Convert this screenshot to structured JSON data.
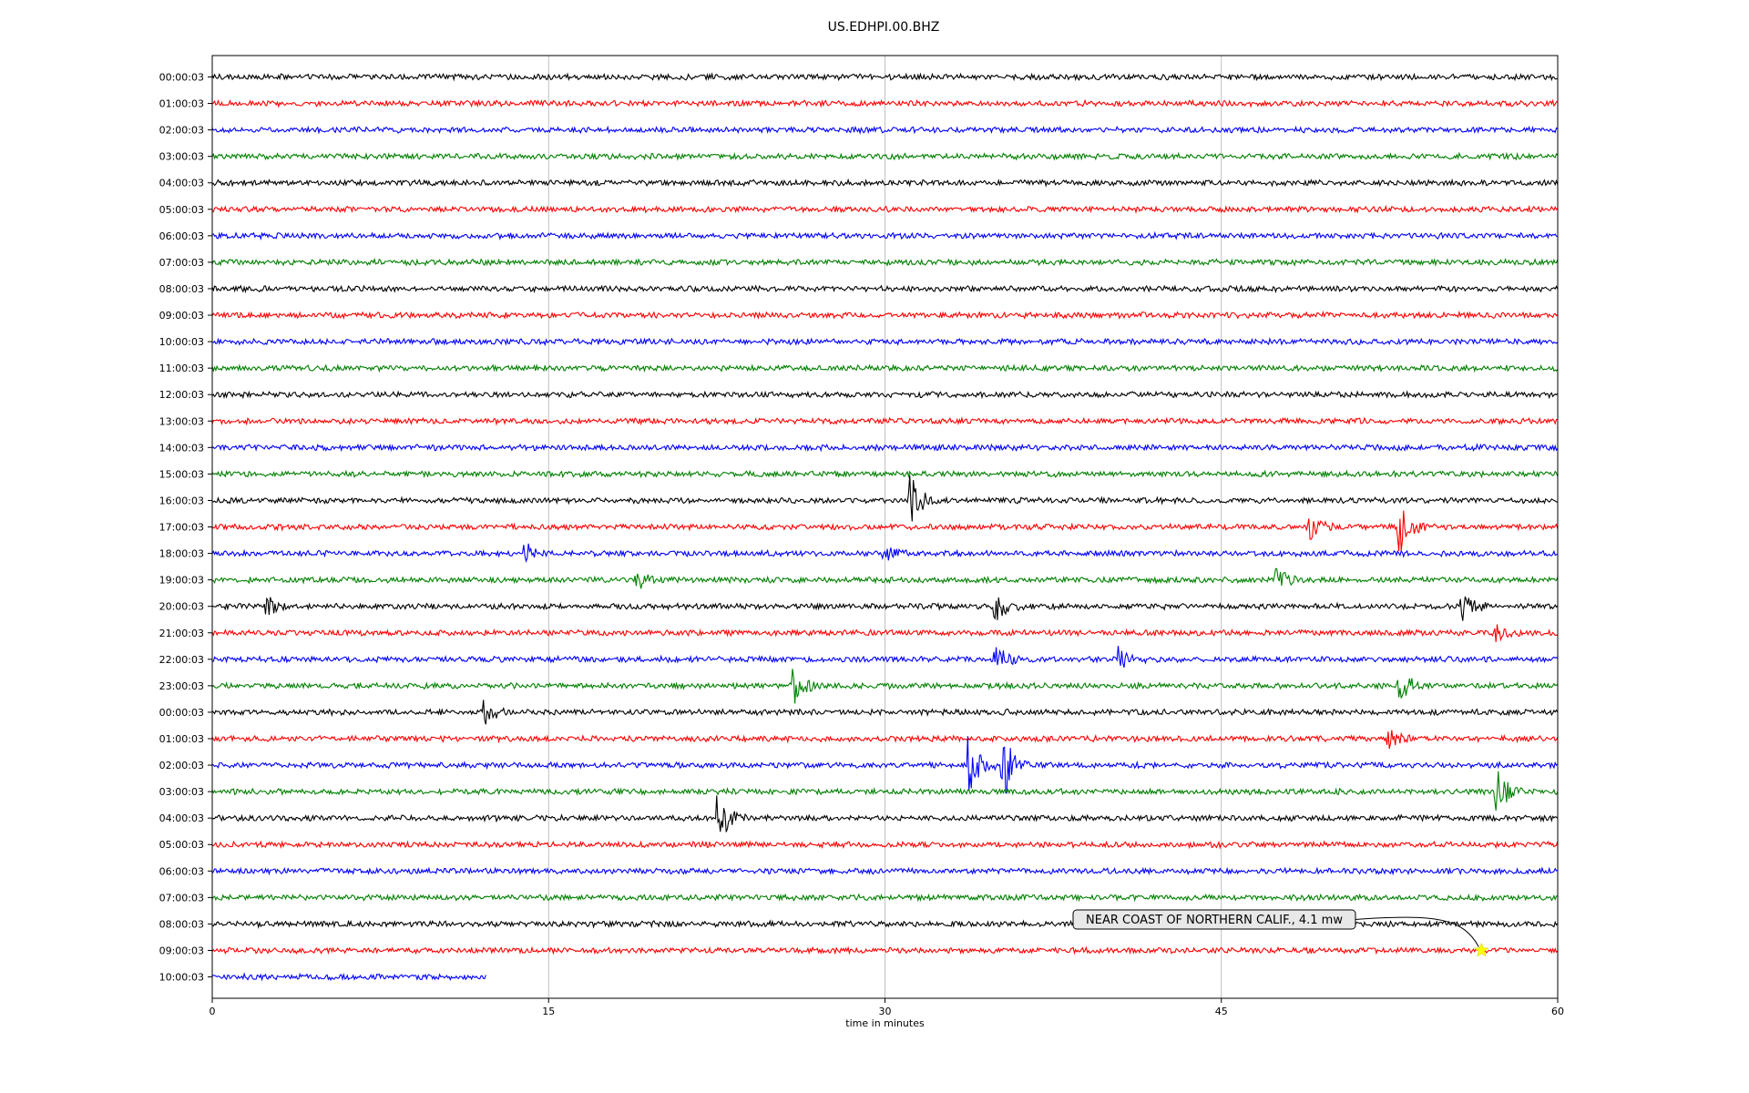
{
  "chart_data": {
    "type": "line",
    "title": "US.EDHPI.00.BHZ",
    "xlabel": "time in minutes",
    "ylabel": "",
    "xlim": [
      0,
      60
    ],
    "x_ticks": [
      "0",
      "15",
      "30",
      "45",
      "60"
    ],
    "grid": "vertical lines at 15, 30, 45",
    "trace_colors": [
      "#000000",
      "#ff0000",
      "#0000ff",
      "#008000"
    ],
    "row_labels": [
      "00:00:03",
      "01:00:03",
      "02:00:03",
      "03:00:03",
      "04:00:03",
      "05:00:03",
      "06:00:03",
      "07:00:03",
      "08:00:03",
      "09:00:03",
      "10:00:03",
      "11:00:03",
      "12:00:03",
      "13:00:03",
      "14:00:03",
      "15:00:03",
      "16:00:03",
      "17:00:03",
      "18:00:03",
      "19:00:03",
      "20:00:03",
      "21:00:03",
      "22:00:03",
      "23:00:03",
      "00:00:03",
      "01:00:03",
      "02:00:03",
      "03:00:03",
      "04:00:03",
      "05:00:03",
      "06:00:03",
      "07:00:03",
      "08:00:03",
      "09:00:03",
      "10:00:03"
    ],
    "last_row_end_minute": 12.2,
    "events": [
      {
        "row": 16,
        "minute": 31.2,
        "amplitude": 3.0
      },
      {
        "row": 17,
        "minute": 49.0,
        "amplitude": 1.5
      },
      {
        "row": 17,
        "minute": 53.0,
        "amplitude": 2.5
      },
      {
        "row": 18,
        "minute": 14.0,
        "amplitude": 1.0
      },
      {
        "row": 18,
        "minute": 30.0,
        "amplitude": 0.8
      },
      {
        "row": 19,
        "minute": 19.0,
        "amplitude": 1.0
      },
      {
        "row": 19,
        "minute": 47.5,
        "amplitude": 1.2
      },
      {
        "row": 20,
        "minute": 2.5,
        "amplitude": 1.0
      },
      {
        "row": 20,
        "minute": 35.0,
        "amplitude": 1.8
      },
      {
        "row": 20,
        "minute": 55.8,
        "amplitude": 1.5
      },
      {
        "row": 21,
        "minute": 57.2,
        "amplitude": 1.0
      },
      {
        "row": 22,
        "minute": 35.0,
        "amplitude": 1.4
      },
      {
        "row": 22,
        "minute": 40.5,
        "amplitude": 1.3
      },
      {
        "row": 23,
        "minute": 26.0,
        "amplitude": 1.8
      },
      {
        "row": 23,
        "minute": 53.0,
        "amplitude": 1.8
      },
      {
        "row": 24,
        "minute": 12.2,
        "amplitude": 1.3
      },
      {
        "row": 25,
        "minute": 52.5,
        "amplitude": 1.0
      },
      {
        "row": 26,
        "minute": 33.8,
        "amplitude": 3.2
      },
      {
        "row": 26,
        "minute": 35.3,
        "amplitude": 3.5
      },
      {
        "row": 27,
        "minute": 57.3,
        "amplitude": 2.5
      },
      {
        "row": 28,
        "minute": 22.6,
        "amplitude": 3.0
      }
    ],
    "annotations": [
      {
        "text": "NEAR COAST OF NORTHERN CALIF., 4.1 mw",
        "row": 33,
        "minute": 56.6,
        "marker": "yellow star",
        "marker_color": "#ffff00"
      }
    ]
  }
}
